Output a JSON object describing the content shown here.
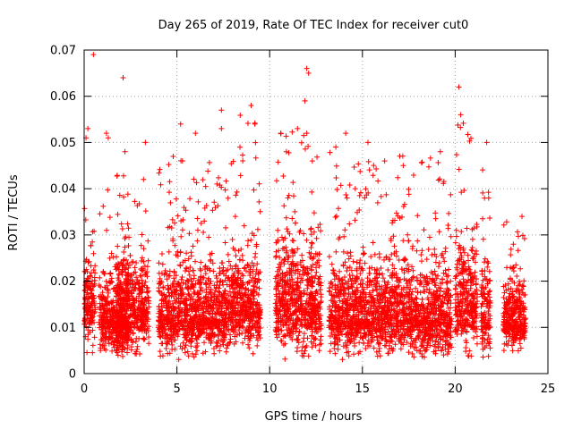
{
  "chart_data": {
    "type": "scatter",
    "title": "Day 265 of 2019, Rate Of TEC Index for receiver cut0",
    "xlabel": "GPS time / hours",
    "ylabel": "ROTI / TECUs",
    "xlim": [
      0,
      25
    ],
    "ylim": [
      0,
      0.07
    ],
    "x_ticks": [
      0,
      5,
      10,
      15,
      20,
      25
    ],
    "x_tick_labels": [
      "0",
      "5",
      "10",
      "15",
      "20",
      "25"
    ],
    "y_ticks": [
      0,
      0.01,
      0.02,
      0.03,
      0.04,
      0.05,
      0.06,
      0.07
    ],
    "y_tick_labels": [
      "0",
      "0.01",
      "0.02",
      "0.03",
      "0.04",
      "0.05",
      "0.06",
      "0.07"
    ],
    "grid": true,
    "marker": "+",
    "color": "#ff0000",
    "series": [
      {
        "name": "ROTI",
        "clusters": [
          {
            "start": 0.0,
            "end": 0.6,
            "mean": 0.014,
            "spread": 0.006,
            "peak": 0.037
          },
          {
            "start": 0.8,
            "end": 2.4,
            "mean": 0.011,
            "spread": 0.005,
            "peak": 0.045
          },
          {
            "start": 1.7,
            "end": 3.5,
            "mean": 0.013,
            "spread": 0.006,
            "peak": 0.04
          },
          {
            "start": 4.0,
            "end": 7.8,
            "mean": 0.012,
            "spread": 0.006,
            "peak": 0.047
          },
          {
            "start": 7.8,
            "end": 9.5,
            "mean": 0.014,
            "spread": 0.006,
            "peak": 0.057
          },
          {
            "start": 10.3,
            "end": 12.8,
            "mean": 0.014,
            "spread": 0.007,
            "peak": 0.054
          },
          {
            "start": 13.2,
            "end": 15.7,
            "mean": 0.012,
            "spread": 0.006,
            "peak": 0.051
          },
          {
            "start": 15.7,
            "end": 19.8,
            "mean": 0.012,
            "spread": 0.006,
            "peak": 0.048
          },
          {
            "start": 20.0,
            "end": 21.2,
            "mean": 0.014,
            "spread": 0.007,
            "peak": 0.056
          },
          {
            "start": 21.4,
            "end": 21.9,
            "mean": 0.012,
            "spread": 0.006,
            "peak": 0.05
          },
          {
            "start": 22.6,
            "end": 23.8,
            "mean": 0.011,
            "spread": 0.005,
            "peak": 0.034
          }
        ],
        "outliers": [
          [
            0.5,
            0.069
          ],
          [
            2.1,
            0.064
          ],
          [
            12.0,
            0.066
          ],
          [
            12.1,
            0.065
          ],
          [
            20.2,
            0.062
          ],
          [
            9.0,
            0.058
          ],
          [
            9.2,
            0.054
          ],
          [
            11.9,
            0.059
          ],
          [
            7.4,
            0.057
          ],
          [
            20.3,
            0.056
          ],
          [
            0.2,
            0.053
          ],
          [
            0.1,
            0.051
          ],
          [
            1.2,
            0.052
          ],
          [
            1.3,
            0.051
          ],
          [
            3.3,
            0.05
          ],
          [
            5.2,
            0.054
          ],
          [
            6.0,
            0.052
          ],
          [
            7.4,
            0.053
          ],
          [
            10.6,
            0.052
          ],
          [
            11.5,
            0.053
          ],
          [
            12.0,
            0.052
          ],
          [
            14.1,
            0.052
          ],
          [
            15.3,
            0.05
          ],
          [
            21.7,
            0.05
          ],
          [
            2.2,
            0.048
          ],
          [
            4.8,
            0.047
          ],
          [
            19.2,
            0.048
          ],
          [
            16.2,
            0.046
          ],
          [
            17.2,
            0.045
          ],
          [
            23.6,
            0.034
          ],
          [
            3.2,
            0.042
          ],
          [
            5.3,
            0.046
          ],
          [
            8.4,
            0.049
          ],
          [
            10.9,
            0.048
          ],
          [
            12.3,
            0.046
          ]
        ]
      }
    ]
  }
}
